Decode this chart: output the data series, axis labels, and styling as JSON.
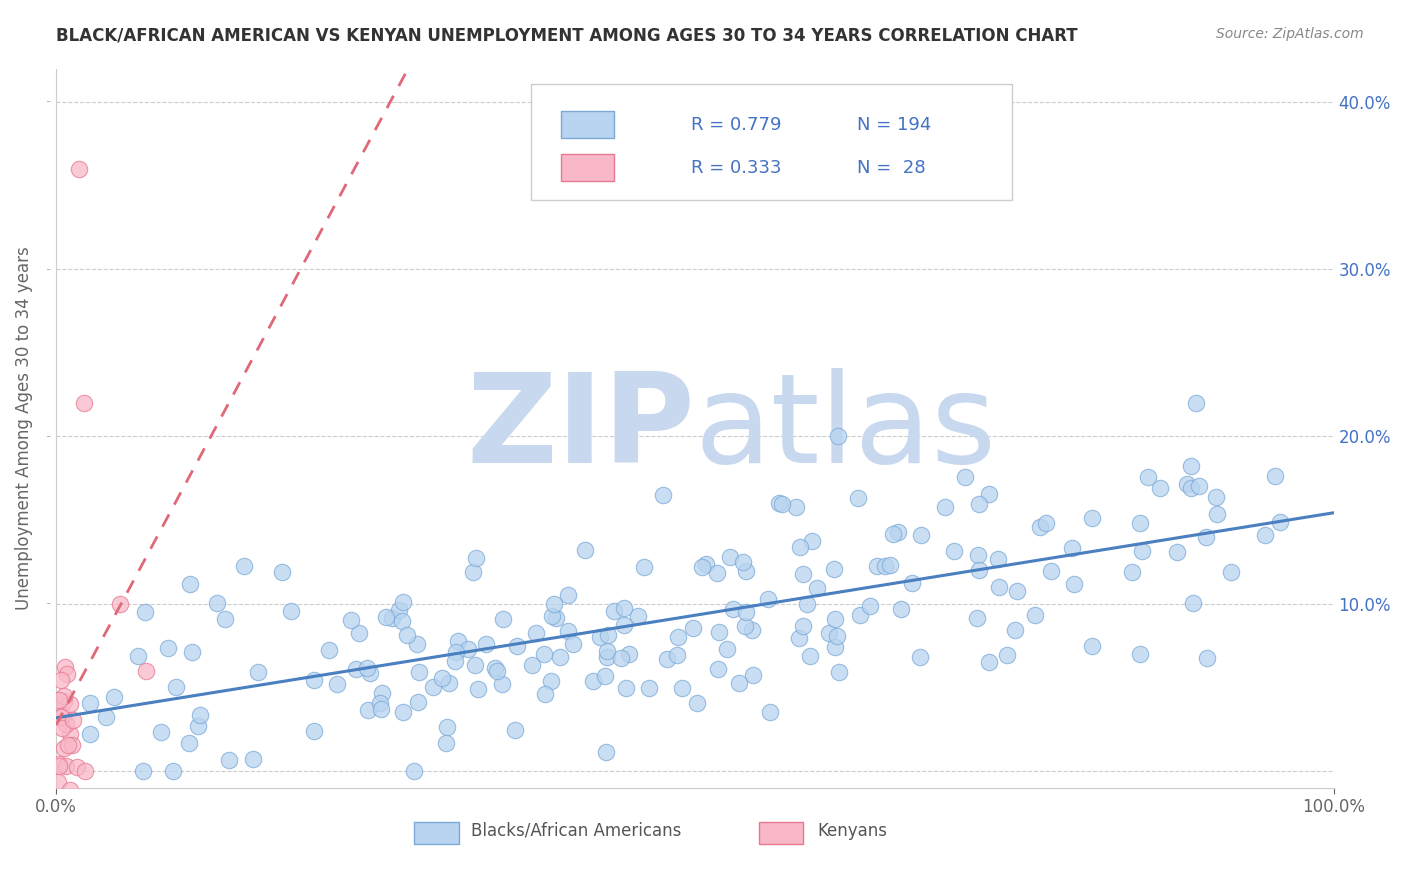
{
  "title": "BLACK/AFRICAN AMERICAN VS KENYAN UNEMPLOYMENT AMONG AGES 30 TO 34 YEARS CORRELATION CHART",
  "source": "Source: ZipAtlas.com",
  "ylabel": "Unemployment Among Ages 30 to 34 years",
  "xlim": [
    0,
    1.0
  ],
  "ylim": [
    -0.01,
    0.42
  ],
  "xticks": [
    0.0,
    1.0
  ],
  "xticklabels": [
    "0.0%",
    "100.0%"
  ],
  "yticks": [
    0.0,
    0.1,
    0.2,
    0.3,
    0.4
  ],
  "yticklabels": [
    "",
    "10.0%",
    "20.0%",
    "30.0%",
    "40.0%"
  ],
  "blue_R": 0.779,
  "blue_N": 194,
  "pink_R": 0.333,
  "pink_N": 28,
  "blue_color": "#b8d4f0",
  "pink_color": "#f8b8c8",
  "blue_edge_color": "#7baad8",
  "pink_edge_color": "#e87890",
  "blue_line_color": "#4a7fc0",
  "pink_line_color": "#e06878",
  "legend_label_blue": "Blacks/African Americans",
  "legend_label_pink": "Kenyans",
  "watermark_zip": "ZIP",
  "watermark_atlas": "atlas",
  "watermark_color": "#c8d8ee",
  "title_color": "#333333",
  "stat_color": "#4472C4",
  "background_color": "#ffffff",
  "grid_color": "#cccccc",
  "seed": 7
}
